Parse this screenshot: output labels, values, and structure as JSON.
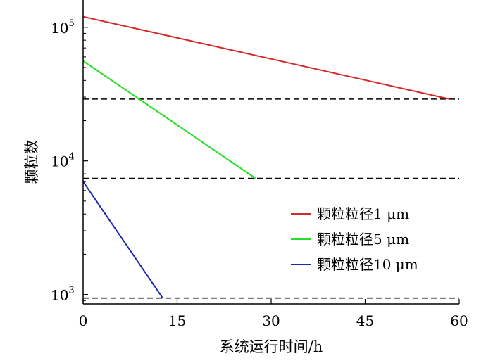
{
  "chart_data": {
    "type": "line",
    "y_scale": "log",
    "xlabel": "系统运行时间/h",
    "ylabel": "颗粒数",
    "xlim": [
      0,
      60
    ],
    "ylim": [
      850,
      160000
    ],
    "x_ticks": [
      0,
      15,
      30,
      45,
      60
    ],
    "x_tick_labels": [
      "0",
      "15",
      "30",
      "45",
      "60"
    ],
    "y_ticks": [
      1000,
      10000,
      100000
    ],
    "y_tick_labels": [
      {
        "base": "10",
        "exp": "3"
      },
      {
        "base": "10",
        "exp": "4"
      },
      {
        "base": "10",
        "exp": "5"
      }
    ],
    "grid": false,
    "legend_position": "right",
    "series": [
      {
        "name": "颗粒粒径1 μm",
        "color": "#d62a2a",
        "x": [
          0,
          58.5
        ],
        "y": [
          120000,
          29000
        ]
      },
      {
        "name": "颗粒粒径5 μm",
        "color": "#22e022",
        "x": [
          0,
          27.5
        ],
        "y": [
          56000,
          7400
        ]
      },
      {
        "name": "颗粒粒径10 μm",
        "color": "#1a2aaa",
        "x": [
          0,
          12.7
        ],
        "y": [
          7000,
          940
        ]
      }
    ],
    "reference_lines": [
      {
        "y": 29000,
        "style": "dashed",
        "color": "#000000"
      },
      {
        "y": 7400,
        "style": "dashed",
        "color": "#000000"
      },
      {
        "y": 940,
        "style": "dashed",
        "color": "#000000"
      }
    ]
  }
}
